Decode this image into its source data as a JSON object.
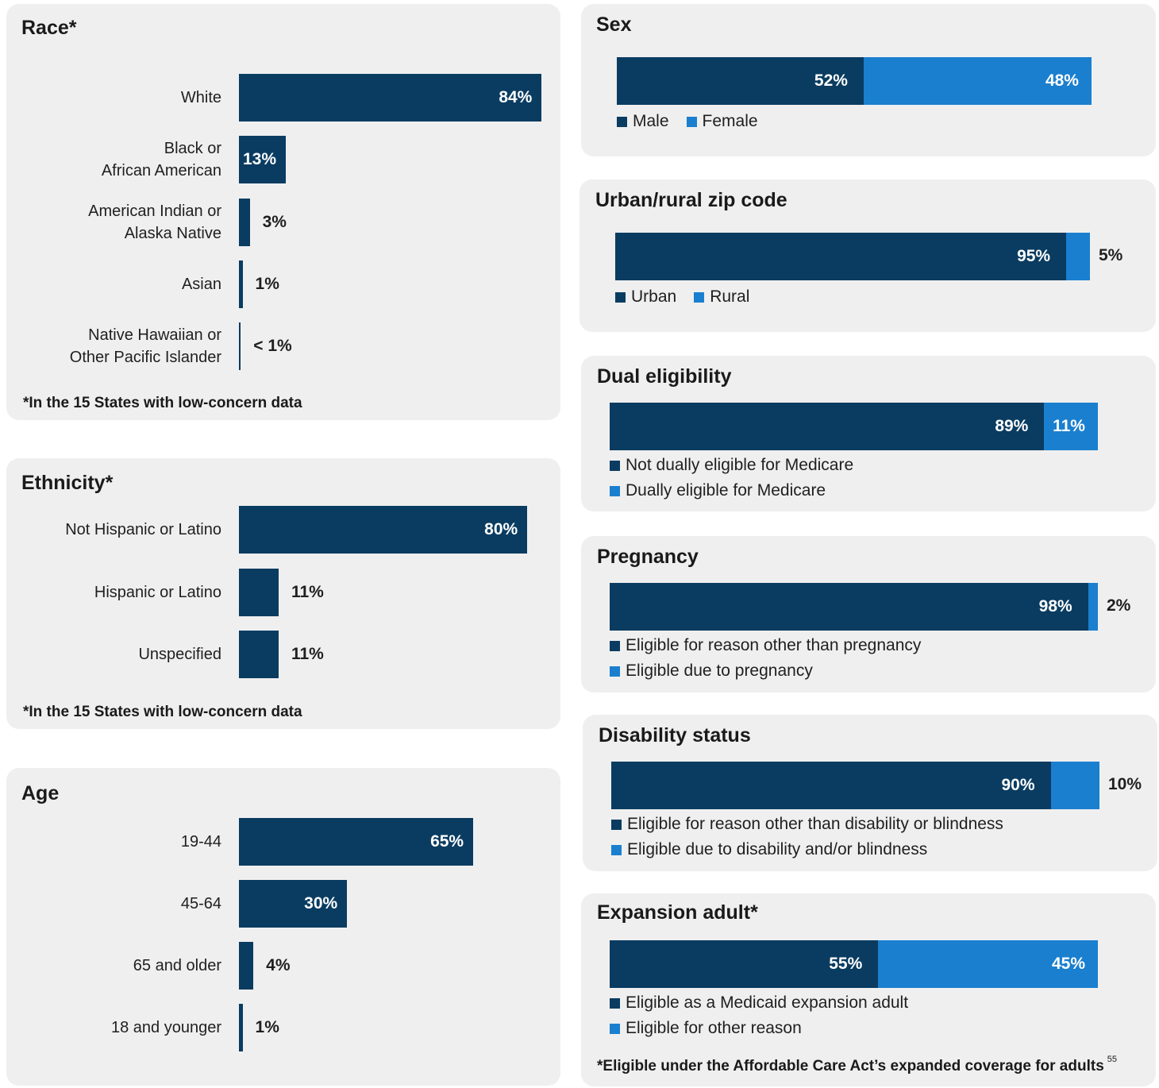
{
  "colors": {
    "dark": "#0a3c61",
    "light": "#1a7fcf",
    "panel": "#efefef"
  },
  "panels": {
    "race": {
      "title": "Race*",
      "note": "*In the 15 States with low-concern data",
      "chart_data": {
        "type": "bar",
        "orientation": "horizontal",
        "categories": [
          "White",
          "Black or African American",
          "American Indian or Alaska Native",
          "Asian",
          "Native Hawaiian or Other Pacific Islander"
        ],
        "values": [
          84,
          13,
          3,
          1,
          0.5
        ],
        "labels": [
          "84%",
          "13%",
          "3%",
          "1%",
          "< 1%"
        ],
        "unit": "%"
      }
    },
    "ethnicity": {
      "title": "Ethnicity*",
      "note": "*In the 15 States with low-concern data",
      "chart_data": {
        "type": "bar",
        "orientation": "horizontal",
        "categories": [
          "Not Hispanic or Latino",
          "Hispanic or Latino",
          "Unspecified"
        ],
        "values": [
          80,
          11,
          11
        ],
        "labels": [
          "80%",
          "11%",
          "11%"
        ],
        "unit": "%"
      }
    },
    "age": {
      "title": "Age",
      "chart_data": {
        "type": "bar",
        "orientation": "horizontal",
        "categories": [
          "19-44",
          "45-64",
          "65 and older",
          "18 and younger"
        ],
        "values": [
          65,
          30,
          4,
          1
        ],
        "labels": [
          "65%",
          "30%",
          "4%",
          "1%"
        ],
        "unit": "%"
      }
    },
    "sex": {
      "title": "Sex",
      "chart_data": {
        "type": "bar",
        "stacked": true,
        "series": [
          {
            "name": "Male",
            "value": 52,
            "label": "52%"
          },
          {
            "name": "Female",
            "value": 48,
            "label": "48%"
          }
        ]
      }
    },
    "urban": {
      "title": "Urban/rural zip code",
      "chart_data": {
        "type": "bar",
        "stacked": true,
        "series": [
          {
            "name": "Urban",
            "value": 95,
            "label": "95%"
          },
          {
            "name": "Rural",
            "value": 5,
            "label": "5%"
          }
        ]
      }
    },
    "dual": {
      "title": "Dual eligibility",
      "chart_data": {
        "type": "bar",
        "stacked": true,
        "series": [
          {
            "name": "Not dually eligible for Medicare",
            "value": 89,
            "label": "89%"
          },
          {
            "name": "Dually eligible for Medicare",
            "value": 11,
            "label": "11%"
          }
        ]
      }
    },
    "pregnancy": {
      "title": "Pregnancy",
      "chart_data": {
        "type": "bar",
        "stacked": true,
        "series": [
          {
            "name": "Eligible for reason other than pregnancy",
            "value": 98,
            "label": "98%"
          },
          {
            "name": "Eligible due to pregnancy",
            "value": 2,
            "label": "2%"
          }
        ]
      }
    },
    "disability": {
      "title": "Disability status",
      "chart_data": {
        "type": "bar",
        "stacked": true,
        "series": [
          {
            "name": "Eligible for reason other than disability or blindness",
            "value": 90,
            "label": "90%"
          },
          {
            "name": "Eligible due to disability and/or blindness",
            "value": 10,
            "label": "10%"
          }
        ]
      }
    },
    "expansion": {
      "title": "Expansion adult*",
      "note": "*Eligible under the Affordable Care Act’s expanded coverage for adults",
      "page_number": "55",
      "chart_data": {
        "type": "bar",
        "stacked": true,
        "series": [
          {
            "name": "Eligible as a Medicaid expansion adult",
            "value": 55,
            "label": "55%"
          },
          {
            "name": "Eligible for other reason",
            "value": 45,
            "label": "45%"
          }
        ]
      }
    }
  }
}
